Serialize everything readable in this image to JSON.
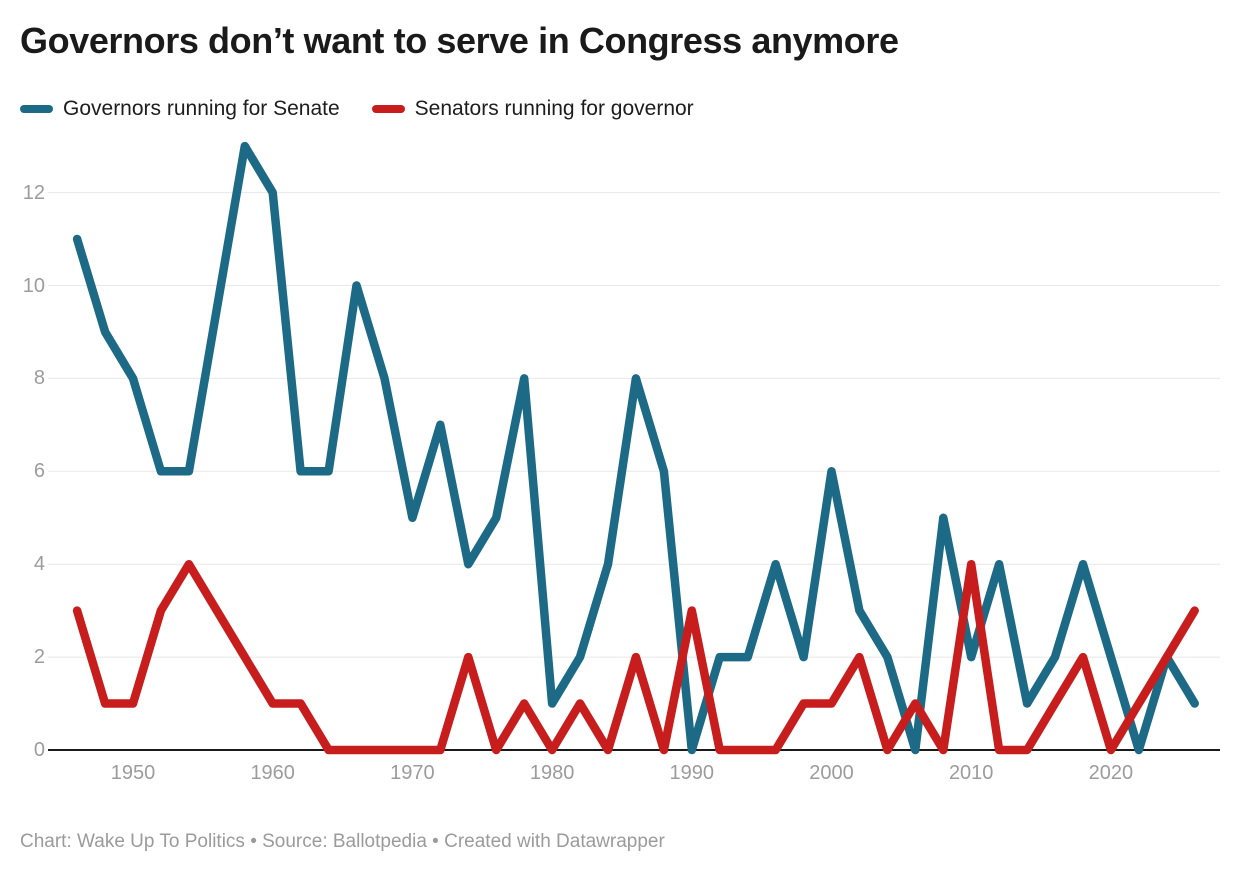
{
  "title": "Governors don’t want to serve in Congress anymore",
  "footer": "Chart: Wake Up To Politics • Source: Ballotpedia • Created with Datawrapper",
  "colors": {
    "governors_line": "#1d6a86",
    "senators_line": "#c71e1d",
    "gridline": "#e8e8e8",
    "baseline": "#1a1a1a",
    "tick_label": "#9c9c9c",
    "title_text": "#1a1a1a",
    "legend_text": "#1d1d1d",
    "footer_text": "#9b9b9b"
  },
  "legend": [
    {
      "label": "Governors running for Senate",
      "color": "#1d6a86"
    },
    {
      "label": "Senators running for governor",
      "color": "#c71e1d"
    }
  ],
  "chart_data": {
    "type": "line",
    "x": [
      1946,
      1948,
      1950,
      1952,
      1954,
      1956,
      1958,
      1960,
      1962,
      1964,
      1966,
      1968,
      1970,
      1972,
      1974,
      1976,
      1978,
      1980,
      1982,
      1984,
      1986,
      1988,
      1990,
      1992,
      1994,
      1996,
      1998,
      2000,
      2002,
      2004,
      2006,
      2008,
      2010,
      2012,
      2014,
      2016,
      2018,
      2020,
      2022,
      2024,
      2026
    ],
    "series": [
      {
        "name": "Governors running for Senate",
        "color": "#1d6a86",
        "values": [
          11,
          9,
          8,
          6,
          6,
          null,
          13,
          12,
          6,
          6,
          10,
          8,
          5,
          7,
          4,
          5,
          8,
          1,
          2,
          4,
          8,
          6,
          0,
          2,
          2,
          4,
          2,
          6,
          3,
          2,
          0,
          5,
          2,
          4,
          1,
          2,
          4,
          2,
          0,
          2,
          1
        ]
      },
      {
        "name": "Senators running for governor",
        "color": "#c71e1d",
        "values": [
          3,
          1,
          1,
          3,
          4,
          3,
          2,
          1,
          1,
          0,
          0,
          0,
          0,
          0,
          2,
          0,
          1,
          0,
          1,
          0,
          2,
          0,
          3,
          0,
          0,
          0,
          1,
          1,
          2,
          0,
          1,
          0,
          4,
          0,
          0,
          1,
          2,
          0,
          1,
          2,
          3
        ]
      }
    ],
    "x_ticks": [
      1950,
      1960,
      1970,
      1980,
      1990,
      2000,
      2010,
      2020
    ],
    "y_ticks": [
      0,
      2,
      4,
      6,
      8,
      10,
      12
    ],
    "xlim": [
      1946,
      2026
    ],
    "ylim": [
      0,
      13
    ],
    "grid": "horizontal-only",
    "legend_position": "top-left"
  }
}
